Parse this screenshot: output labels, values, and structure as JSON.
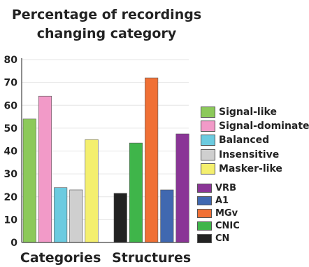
{
  "chart_data": {
    "type": "bar",
    "title": [
      "Percentage of recordings",
      "changing category"
    ],
    "xlabel": "",
    "ylabel": "",
    "ylim": [
      0,
      80
    ],
    "yticks": [
      0,
      10,
      20,
      30,
      40,
      50,
      60,
      70,
      80
    ],
    "grid": true,
    "groups": [
      {
        "name": "Categories",
        "bars": [
          {
            "label": "Signal-like",
            "value": 54,
            "color": "#8cc95a"
          },
          {
            "label": "Signal-dominated",
            "value": 64,
            "color": "#f29ac8"
          },
          {
            "label": "Balanced",
            "value": 24,
            "color": "#6ccbe0"
          },
          {
            "label": "Insensitive",
            "value": 23,
            "color": "#cfcfcf"
          },
          {
            "label": "Masker-like",
            "value": 45,
            "color": "#f4ef6e"
          }
        ]
      },
      {
        "name": "Structures",
        "bars": [
          {
            "label": "CN",
            "value": 21.5,
            "color": "#222222"
          },
          {
            "label": "CNIC",
            "value": 43.5,
            "color": "#3fb54a"
          },
          {
            "label": "MGv",
            "value": 72,
            "color": "#f07035"
          },
          {
            "label": "A1",
            "value": 23,
            "color": "#4068b0"
          },
          {
            "label": "VRB",
            "value": 47.5,
            "color": "#8a3596"
          }
        ]
      }
    ],
    "legends": {
      "categories": [
        "Signal-like",
        "Signal-dominated",
        "Balanced",
        "Insensitive",
        "Masker-like"
      ],
      "structures": [
        "VRB",
        "A1",
        "MGv",
        "CNIC",
        "CN"
      ]
    },
    "legend_placement": "right"
  }
}
